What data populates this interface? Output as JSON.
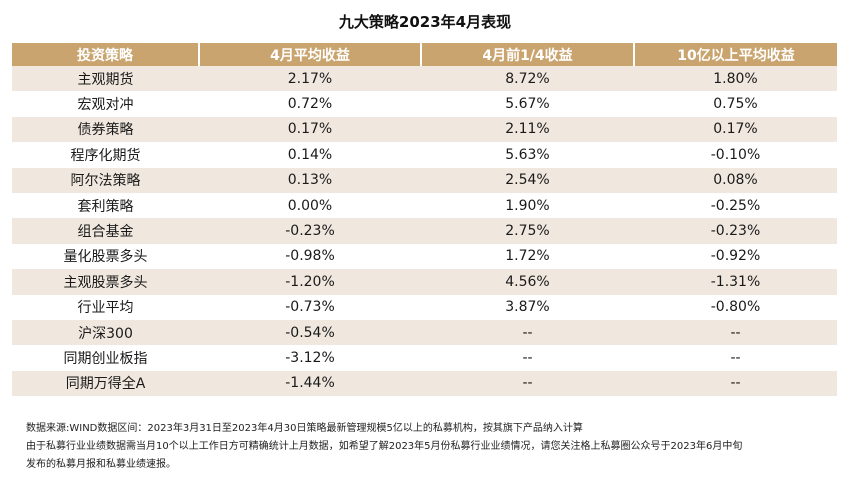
{
  "title": "九大策略2023年4月表现",
  "table": {
    "headers": [
      "投资策略",
      "4月平均收益",
      "4月前1/4收益",
      "10亿以上平均收益"
    ],
    "rows": [
      [
        "主观期货",
        "2.17%",
        "8.72%",
        "1.80%"
      ],
      [
        "宏观对冲",
        "0.72%",
        "5.67%",
        "0.75%"
      ],
      [
        "债券策略",
        "0.17%",
        "2.11%",
        "0.17%"
      ],
      [
        "程序化期货",
        "0.14%",
        "5.63%",
        "-0.10%"
      ],
      [
        "阿尔法策略",
        "0.13%",
        "2.54%",
        "0.08%"
      ],
      [
        "套利策略",
        "0.00%",
        "1.90%",
        "-0.25%"
      ],
      [
        "组合基金",
        "-0.23%",
        "2.75%",
        "-0.23%"
      ],
      [
        "量化股票多头",
        "-0.98%",
        "1.72%",
        "-0.92%"
      ],
      [
        "主观股票多头",
        "-1.20%",
        "4.56%",
        "-1.31%"
      ],
      [
        "行业平均",
        "-0.73%",
        "3.87%",
        "-0.80%"
      ],
      [
        "沪深300",
        "-0.54%",
        "--",
        "--"
      ],
      [
        "同期创业板指",
        "-3.12%",
        "--",
        "--"
      ],
      [
        "同期万得全A",
        "-1.44%",
        "--",
        "--"
      ]
    ]
  },
  "notes": [
    "数据来源:WIND数据区间：2023年3月31日至2023年4月30日策略最新管理规模5亿以上的私募机构，按其旗下产品纳入计算",
    "由于私募行业业绩数据需当月10个以上工作日方可精确统计上月数据，如希望了解2023年5月份私募行业业绩情况，请您关注格上私募圈公众号于2023年6月中旬",
    "发布的私募月报和私募业绩速报。"
  ],
  "colors": {
    "header_bg": "#c9a46f",
    "header_text": "#ffffff",
    "row_alt_bg": "#f0e8df",
    "row_bg": "#ffffff"
  }
}
